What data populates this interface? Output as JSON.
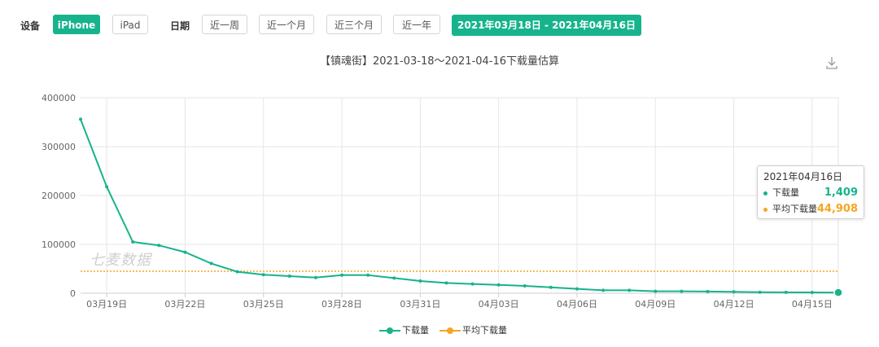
{
  "toolbar": {
    "device_label": "设备",
    "devices": [
      "iPhone",
      "iPad"
    ],
    "active_device": "iPhone",
    "date_label": "日期",
    "ranges": [
      "近一周",
      "近一个月",
      "近三个月",
      "近一年"
    ],
    "date_range": "2021年03月18日 - 2021年04月16日"
  },
  "watermark": "七麦数据",
  "tooltip": {
    "date": "2021年04月16日",
    "rows": [
      {
        "name": "下载量",
        "value": "1,409",
        "color": "#17b38c"
      },
      {
        "name": "平均下载量",
        "value": "44,908",
        "color": "#f5a623"
      }
    ]
  },
  "legend": [
    "下载量",
    "平均下载量"
  ],
  "colors": {
    "accent": "#17b38c",
    "average": "#f5a623"
  },
  "icons": {
    "download": "download-icon",
    "caret": "caret-down-icon"
  },
  "chart_data": {
    "type": "line",
    "title": "【镇魂街】2021-03-18～2021-04-16下载量估算",
    "x": [
      "03月18日",
      "03月19日",
      "03月20日",
      "03月21日",
      "03月22日",
      "03月23日",
      "03月24日",
      "03月25日",
      "03月26日",
      "03月27日",
      "03月28日",
      "03月29日",
      "03月30日",
      "03月31日",
      "04月01日",
      "04月02日",
      "04月03日",
      "04月04日",
      "04月05日",
      "04月06日",
      "04月07日",
      "04月08日",
      "04月09日",
      "04月10日",
      "04月11日",
      "04月12日",
      "04月13日",
      "04月14日",
      "04月15日",
      "04月16日"
    ],
    "x_tick_labels": [
      "03月19日",
      "03月22日",
      "03月25日",
      "03月28日",
      "03月31日",
      "04月03日",
      "04月06日",
      "04月09日",
      "04月12日",
      "04月15日"
    ],
    "series": [
      {
        "name": "下载量",
        "values": [
          356000,
          218000,
          105000,
          98000,
          84000,
          61000,
          44000,
          38000,
          35000,
          32000,
          37000,
          37000,
          31000,
          25000,
          21000,
          19000,
          17000,
          15000,
          12000,
          9000,
          6000,
          6000,
          4000,
          4000,
          3500,
          3000,
          2000,
          1800,
          1600,
          1409
        ]
      },
      {
        "name": "平均下载量",
        "values": [
          44908,
          44908,
          44908,
          44908,
          44908,
          44908,
          44908,
          44908,
          44908,
          44908,
          44908,
          44908,
          44908,
          44908,
          44908,
          44908,
          44908,
          44908,
          44908,
          44908,
          44908,
          44908,
          44908,
          44908,
          44908,
          44908,
          44908,
          44908,
          44908,
          44908
        ]
      }
    ],
    "y_ticks": [
      0,
      100000,
      200000,
      300000,
      400000
    ],
    "ylim": [
      0,
      400000
    ],
    "grid": true,
    "legend_position": "bottom"
  }
}
